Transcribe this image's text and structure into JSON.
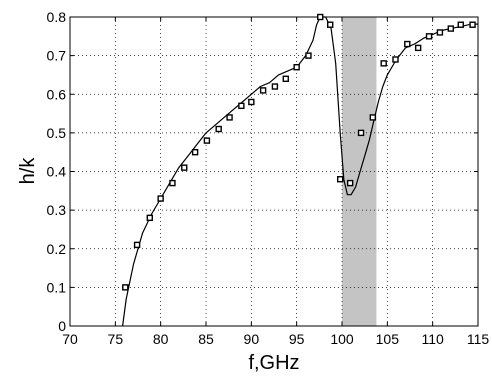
{
  "chart_data": {
    "type": "scatter",
    "xlabel": "f,GHz",
    "ylabel": "h/k",
    "xlim": [
      70,
      115
    ],
    "ylim": [
      0,
      0.8
    ],
    "x_ticks": [
      70,
      75,
      80,
      85,
      90,
      95,
      100,
      105,
      110,
      115
    ],
    "y_ticks": [
      0,
      0.1,
      0.2,
      0.3,
      0.4,
      0.5,
      0.6,
      0.7,
      0.8
    ],
    "x_tick_labels": [
      "70",
      "75",
      "80",
      "85",
      "90",
      "95",
      "100",
      "105",
      "110",
      "115"
    ],
    "y_tick_labels": [
      "0",
      "0.1",
      "0.2",
      "0.3",
      "0.4",
      "0.5",
      "0.6",
      "0.7",
      "0.8"
    ],
    "grid": true,
    "band": {
      "x_start": 100,
      "x_end": 103.8,
      "color": "#c4c4c4"
    },
    "series": [
      {
        "kind": "markers",
        "marker": "square",
        "x": [
          76.1,
          77.4,
          78.8,
          80.0,
          81.3,
          82.6,
          83.8,
          85.1,
          86.4,
          87.6,
          88.9,
          90.0,
          91.3,
          92.6,
          93.8,
          95.0,
          96.3,
          97.6,
          98.7,
          99.8,
          100.9,
          102.1,
          103.4,
          104.6,
          105.9,
          107.2,
          108.4,
          109.6,
          110.8,
          112.0,
          113.1,
          114.4
        ],
        "y": [
          0.1,
          0.21,
          0.28,
          0.33,
          0.37,
          0.41,
          0.45,
          0.48,
          0.51,
          0.54,
          0.57,
          0.58,
          0.61,
          0.62,
          0.64,
          0.67,
          0.7,
          0.8,
          0.78,
          0.38,
          0.37,
          0.5,
          0.54,
          0.68,
          0.69,
          0.73,
          0.72,
          0.75,
          0.76,
          0.77,
          0.78,
          0.78
        ]
      },
      {
        "kind": "line",
        "x": [
          75.8,
          76.2,
          77.0,
          78.0,
          79.0,
          80.0,
          81.0,
          82.0,
          83.0,
          84.0,
          85.0,
          86.0,
          87.0,
          88.0,
          89.0,
          90.0,
          91.0,
          92.0,
          93.0,
          94.0,
          95.0,
          96.0,
          96.8,
          97.2,
          97.6,
          98.2,
          98.8,
          99.3,
          99.8,
          100.2,
          100.6,
          101.0,
          101.5,
          102.0,
          102.5,
          103.0,
          103.5,
          104.0,
          104.5,
          105.0,
          106.0,
          107.0,
          108.0,
          109.0,
          110.0,
          111.0,
          112.0,
          113.0,
          114.0,
          115.0
        ],
        "y": [
          0.0,
          0.07,
          0.16,
          0.24,
          0.29,
          0.33,
          0.37,
          0.41,
          0.44,
          0.47,
          0.5,
          0.52,
          0.54,
          0.56,
          0.58,
          0.6,
          0.62,
          0.63,
          0.65,
          0.66,
          0.67,
          0.7,
          0.74,
          0.78,
          0.8,
          0.8,
          0.77,
          0.68,
          0.5,
          0.38,
          0.34,
          0.34,
          0.36,
          0.4,
          0.44,
          0.48,
          0.53,
          0.58,
          0.62,
          0.65,
          0.69,
          0.72,
          0.73,
          0.745,
          0.755,
          0.765,
          0.77,
          0.775,
          0.78,
          0.782
        ]
      }
    ]
  }
}
